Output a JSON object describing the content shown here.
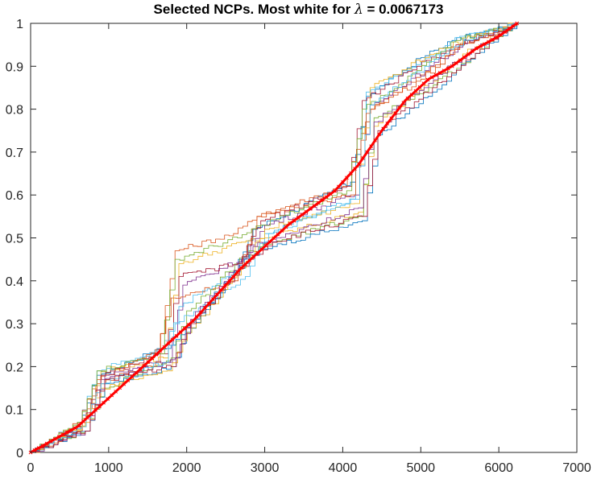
{
  "chart_data": {
    "type": "line",
    "title_prefix": "Selected NCPs.  Most white for ",
    "title_symbol": "λ",
    "title_suffix": " = 0.0067173",
    "xlabel": "",
    "ylabel": "",
    "xlim": [
      0,
      7000
    ],
    "ylim": [
      0,
      1
    ],
    "x_ticks": [
      "0",
      "1000",
      "2000",
      "3000",
      "4000",
      "5000",
      "6000",
      "7000"
    ],
    "y_ticks": [
      "0",
      "0.1",
      "0.2",
      "0.3",
      "0.4",
      "0.5",
      "0.6",
      "0.7",
      "0.8",
      "0.9",
      "1"
    ],
    "grid": false,
    "legend": "none",
    "n_samples": 6233,
    "highlight": {
      "color": "#ff0000",
      "x": [
        0,
        300,
        600,
        900,
        1200,
        1500,
        1800,
        2100,
        2400,
        2700,
        3000,
        3300,
        3600,
        3900,
        4200,
        4500,
        4800,
        5100,
        5400,
        5700,
        6000,
        6233
      ],
      "y": [
        0.0,
        0.03,
        0.06,
        0.11,
        0.16,
        0.21,
        0.26,
        0.31,
        0.37,
        0.43,
        0.48,
        0.53,
        0.57,
        0.61,
        0.67,
        0.75,
        0.82,
        0.87,
        0.9,
        0.94,
        0.97,
        1.0
      ]
    },
    "series": [
      {
        "color": "#0072bd",
        "x": [
          0,
          600,
          850,
          1500,
          1800,
          2600,
          2850,
          4100,
          4300,
          5000,
          5400,
          6233
        ],
        "y": [
          0.0,
          0.06,
          0.18,
          0.23,
          0.25,
          0.42,
          0.52,
          0.63,
          0.83,
          0.92,
          0.96,
          1.0
        ]
      },
      {
        "color": "#d95319",
        "x": [
          0,
          600,
          850,
          1600,
          1850,
          2600,
          2900,
          4000,
          4350,
          5000,
          5500,
          6233
        ],
        "y": [
          0.0,
          0.05,
          0.16,
          0.21,
          0.47,
          0.51,
          0.55,
          0.62,
          0.8,
          0.88,
          0.95,
          1.0
        ]
      },
      {
        "color": "#edb120",
        "x": [
          0,
          700,
          900,
          1700,
          1900,
          2700,
          3000,
          4200,
          4400,
          5100,
          5600,
          6233
        ],
        "y": [
          0.0,
          0.07,
          0.19,
          0.22,
          0.44,
          0.49,
          0.5,
          0.56,
          0.76,
          0.86,
          0.94,
          1.0
        ]
      },
      {
        "color": "#7e2f8e",
        "x": [
          0,
          650,
          900,
          1750,
          1950,
          2700,
          3000,
          4150,
          4350,
          5050,
          5600,
          6233
        ],
        "y": [
          0.0,
          0.06,
          0.17,
          0.21,
          0.39,
          0.45,
          0.53,
          0.6,
          0.81,
          0.89,
          0.96,
          1.0
        ]
      },
      {
        "color": "#77ac30",
        "x": [
          0,
          700,
          950,
          1800,
          2000,
          2800,
          3100,
          4200,
          4400,
          5100,
          5700,
          6233
        ],
        "y": [
          0.0,
          0.05,
          0.15,
          0.22,
          0.33,
          0.47,
          0.49,
          0.55,
          0.78,
          0.85,
          0.93,
          1.0
        ]
      },
      {
        "color": "#4dbeee",
        "x": [
          0,
          600,
          850,
          1650,
          1850,
          2750,
          3000,
          4100,
          4300,
          5000,
          5500,
          6233
        ],
        "y": [
          0.0,
          0.07,
          0.19,
          0.24,
          0.3,
          0.41,
          0.51,
          0.59,
          0.84,
          0.91,
          0.97,
          1.0
        ]
      },
      {
        "color": "#a2142f",
        "x": [
          0,
          650,
          900,
          1700,
          1900,
          2650,
          2950,
          4050,
          4250,
          4950,
          5450,
          6233
        ],
        "y": [
          0.0,
          0.06,
          0.18,
          0.23,
          0.41,
          0.44,
          0.54,
          0.62,
          0.82,
          0.9,
          0.95,
          1.0
        ]
      },
      {
        "color": "#0072bd",
        "x": [
          0,
          700,
          950,
          1800,
          2000,
          2800,
          3100,
          4250,
          4450,
          5150,
          5700,
          6233
        ],
        "y": [
          0.0,
          0.05,
          0.16,
          0.2,
          0.28,
          0.46,
          0.48,
          0.54,
          0.74,
          0.84,
          0.93,
          1.0
        ]
      },
      {
        "color": "#d95319",
        "x": [
          0,
          600,
          850,
          1600,
          1800,
          2600,
          2900,
          4100,
          4300,
          5000,
          5500,
          6233
        ],
        "y": [
          0.0,
          0.07,
          0.17,
          0.24,
          0.36,
          0.4,
          0.55,
          0.6,
          0.79,
          0.87,
          0.95,
          1.0
        ]
      },
      {
        "color": "#edb120",
        "x": [
          0,
          650,
          900,
          1750,
          1950,
          2700,
          3000,
          4150,
          4350,
          5050,
          5600,
          6233
        ],
        "y": [
          0.0,
          0.06,
          0.15,
          0.19,
          0.26,
          0.43,
          0.52,
          0.58,
          0.85,
          0.92,
          0.97,
          1.0
        ]
      },
      {
        "color": "#7e2f8e",
        "x": [
          0,
          700,
          950,
          1850,
          2050,
          2850,
          3150,
          4200,
          4400,
          5100,
          5650,
          6233
        ],
        "y": [
          0.0,
          0.05,
          0.18,
          0.22,
          0.31,
          0.48,
          0.5,
          0.57,
          0.77,
          0.86,
          0.94,
          1.0
        ]
      },
      {
        "color": "#77ac30",
        "x": [
          0,
          600,
          850,
          1650,
          1850,
          2650,
          2950,
          4050,
          4250,
          4950,
          5450,
          6233
        ],
        "y": [
          0.0,
          0.07,
          0.19,
          0.23,
          0.45,
          0.5,
          0.53,
          0.61,
          0.8,
          0.89,
          0.96,
          1.0
        ]
      },
      {
        "color": "#4dbeee",
        "x": [
          0,
          650,
          900,
          1700,
          1900,
          2750,
          3050,
          4150,
          4350,
          5050,
          5550,
          6233
        ],
        "y": [
          0.0,
          0.06,
          0.16,
          0.21,
          0.34,
          0.44,
          0.51,
          0.59,
          0.81,
          0.9,
          0.96,
          1.0
        ]
      },
      {
        "color": "#a2142f",
        "x": [
          0,
          700,
          950,
          1800,
          2000,
          2800,
          3100,
          4250,
          4450,
          5150,
          5700,
          6233
        ],
        "y": [
          0.0,
          0.05,
          0.17,
          0.2,
          0.29,
          0.45,
          0.49,
          0.55,
          0.75,
          0.85,
          0.93,
          1.0
        ]
      }
    ]
  }
}
